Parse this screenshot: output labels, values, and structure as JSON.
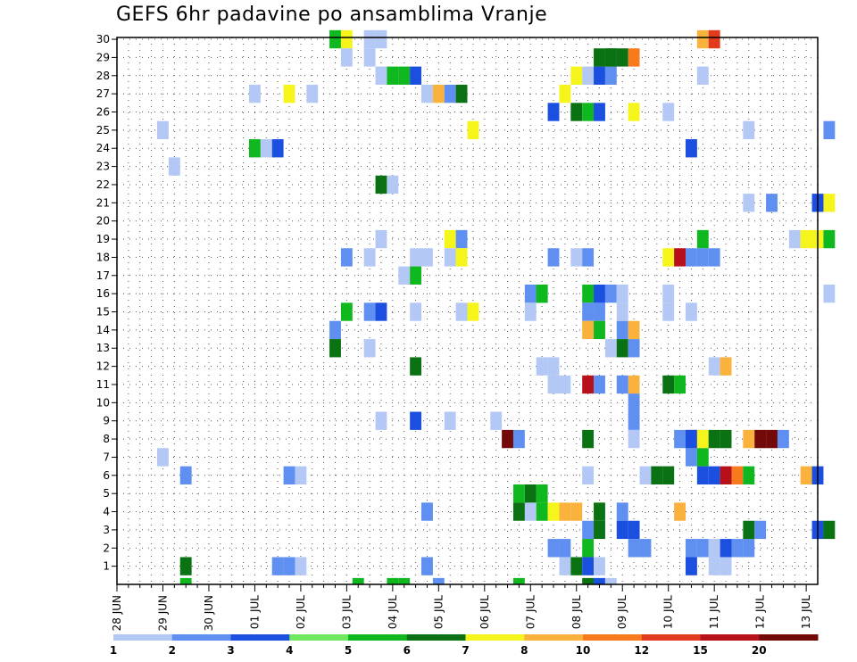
{
  "title": "GEFS 6hr padavine po ansamblima Vranje",
  "chart_data": {
    "type": "heatmap",
    "title": "GEFS 6hr padavine po ansamblima Vranje",
    "xlabel": "",
    "ylabel": "",
    "x_ticks": [
      "28 JUN",
      "29 JUN",
      "30 JUN",
      "01 JUL",
      "02 JUL",
      "03 JUL",
      "04 JUL",
      "05 JUL",
      "06 JUL",
      "07 JUL",
      "08 JUL",
      "09 JUL",
      "10 JUL",
      "11 JUL",
      "12 JUL",
      "13 JUL"
    ],
    "y_ticks": [
      "1",
      "2",
      "3",
      "4",
      "5",
      "6",
      "7",
      "8",
      "9",
      "10",
      "11",
      "12",
      "13",
      "14",
      "15",
      "16",
      "17",
      "18",
      "19",
      "20",
      "21",
      "22",
      "23",
      "24",
      "25",
      "26",
      "27",
      "28",
      "29",
      "30"
    ],
    "x_range_days": [
      0,
      15.25
    ],
    "y_range": [
      0,
      30
    ],
    "grid": true,
    "legend_position": "bottom",
    "colorbar_labels": [
      "1",
      "2",
      "3",
      "4",
      "5",
      "6",
      "7",
      "8",
      "10",
      "12",
      "15",
      "20"
    ],
    "colorbar_colors": [
      "#b4c8f5",
      "#5f8ff0",
      "#1a4fe0",
      "#6fe860",
      "#10b820",
      "#0a7212",
      "#f5f51c",
      "#fab23c",
      "#f77a1c",
      "#e23a1c",
      "#b8101a",
      "#720a0a"
    ],
    "cells": [
      {
        "t": 1.5,
        "m": 1,
        "c": 5
      },
      {
        "t": 1.5,
        "m": 0,
        "c": 4
      },
      {
        "t": 1.0,
        "m": 7,
        "c": 0
      },
      {
        "t": 1.5,
        "m": 6,
        "c": 1
      },
      {
        "t": 1.25,
        "m": 23,
        "c": 0
      },
      {
        "t": 1.0,
        "m": 25,
        "c": 0
      },
      {
        "t": 3.75,
        "m": 6,
        "c": 1
      },
      {
        "t": 4.0,
        "m": 6,
        "c": 0
      },
      {
        "t": 3.0,
        "m": 24,
        "c": 4
      },
      {
        "t": 3.25,
        "m": 24,
        "c": 0
      },
      {
        "t": 3.5,
        "m": 24,
        "c": 2
      },
      {
        "t": 3.0,
        "m": 27,
        "c": 0
      },
      {
        "t": 3.5,
        "m": 1,
        "c": 1
      },
      {
        "t": 3.75,
        "m": 1,
        "c": 1
      },
      {
        "t": 4.0,
        "m": 1,
        "c": 0
      },
      {
        "t": 4.75,
        "m": 30,
        "c": 4
      },
      {
        "t": 5.0,
        "m": 30,
        "c": 6
      },
      {
        "t": 5.0,
        "m": 29,
        "c": 0
      },
      {
        "t": 5.5,
        "m": 30,
        "c": 0
      },
      {
        "t": 5.75,
        "m": 30,
        "c": 0
      },
      {
        "t": 5.5,
        "m": 29,
        "c": 0
      },
      {
        "t": 3.75,
        "m": 27,
        "c": 6
      },
      {
        "t": 4.25,
        "m": 27,
        "c": 0
      },
      {
        "t": 5.0,
        "m": 18,
        "c": 1
      },
      {
        "t": 5.5,
        "m": 18,
        "c": 0
      },
      {
        "t": 5.0,
        "m": 15,
        "c": 4
      },
      {
        "t": 5.5,
        "m": 15,
        "c": 1
      },
      {
        "t": 5.75,
        "m": 15,
        "c": 2
      },
      {
        "t": 4.75,
        "m": 14,
        "c": 1
      },
      {
        "t": 4.75,
        "m": 13,
        "c": 5
      },
      {
        "t": 5.5,
        "m": 13,
        "c": 0
      },
      {
        "t": 5.75,
        "m": 22,
        "c": 5
      },
      {
        "t": 6.0,
        "m": 22,
        "c": 0
      },
      {
        "t": 5.75,
        "m": 19,
        "c": 0
      },
      {
        "t": 5.75,
        "m": 9,
        "c": 0
      },
      {
        "t": 5.75,
        "m": 28,
        "c": 0
      },
      {
        "t": 6.0,
        "m": 28,
        "c": 4
      },
      {
        "t": 6.25,
        "m": 28,
        "c": 4
      },
      {
        "t": 6.5,
        "m": 28,
        "c": 2
      },
      {
        "t": 6.5,
        "m": 18,
        "c": 0
      },
      {
        "t": 6.75,
        "m": 18,
        "c": 0
      },
      {
        "t": 6.25,
        "m": 17,
        "c": 0
      },
      {
        "t": 6.5,
        "m": 17,
        "c": 4
      },
      {
        "t": 6.5,
        "m": 15,
        "c": 0
      },
      {
        "t": 6.5,
        "m": 12,
        "c": 5
      },
      {
        "t": 6.5,
        "m": 9,
        "c": 2
      },
      {
        "t": 6.75,
        "m": 27,
        "c": 0
      },
      {
        "t": 7.0,
        "m": 27,
        "c": 7
      },
      {
        "t": 6.75,
        "m": 4,
        "c": 1
      },
      {
        "t": 6.75,
        "m": 1,
        "c": 1
      },
      {
        "t": 7.25,
        "m": 27,
        "c": 1
      },
      {
        "t": 7.5,
        "m": 27,
        "c": 5
      },
      {
        "t": 7.25,
        "m": 19,
        "c": 6
      },
      {
        "t": 7.5,
        "m": 19,
        "c": 1
      },
      {
        "t": 7.25,
        "m": 18,
        "c": 0
      },
      {
        "t": 7.5,
        "m": 18,
        "c": 6
      },
      {
        "t": 7.25,
        "m": 9,
        "c": 0
      },
      {
        "t": 7.5,
        "m": 15,
        "c": 0
      },
      {
        "t": 7.75,
        "m": 15,
        "c": 6
      },
      {
        "t": 7.75,
        "m": 25,
        "c": 6
      },
      {
        "t": 8.25,
        "m": 9,
        "c": 0
      },
      {
        "t": 8.5,
        "m": 8,
        "c": 11
      },
      {
        "t": 8.75,
        "m": 8,
        "c": 1
      },
      {
        "t": 9.0,
        "m": 16,
        "c": 1
      },
      {
        "t": 9.25,
        "m": 16,
        "c": 4
      },
      {
        "t": 9.0,
        "m": 4,
        "c": 0
      },
      {
        "t": 9.25,
        "m": 4,
        "c": 4
      },
      {
        "t": 9.5,
        "m": 4,
        "c": 6
      },
      {
        "t": 9.75,
        "m": 4,
        "c": 7
      },
      {
        "t": 10.0,
        "m": 4,
        "c": 7
      },
      {
        "t": 9.25,
        "m": 12,
        "c": 0
      },
      {
        "t": 9.5,
        "m": 12,
        "c": 0
      },
      {
        "t": 9.5,
        "m": 11,
        "c": 0
      },
      {
        "t": 9.75,
        "m": 11,
        "c": 0
      },
      {
        "t": 9.5,
        "m": 2,
        "c": 1
      },
      {
        "t": 9.75,
        "m": 2,
        "c": 1
      },
      {
        "t": 9.75,
        "m": 1,
        "c": 0
      },
      {
        "t": 9.5,
        "m": 18,
        "c": 1
      },
      {
        "t": 10.0,
        "m": 18,
        "c": 0
      },
      {
        "t": 10.25,
        "m": 18,
        "c": 1
      },
      {
        "t": 9.5,
        "m": 26,
        "c": 2
      },
      {
        "t": 10.0,
        "m": 26,
        "c": 5
      },
      {
        "t": 10.25,
        "m": 26,
        "c": 4
      },
      {
        "t": 10.5,
        "m": 26,
        "c": 2
      },
      {
        "t": 9.75,
        "m": 27,
        "c": 6
      },
      {
        "t": 10.0,
        "m": 28,
        "c": 6
      },
      {
        "t": 10.25,
        "m": 28,
        "c": 0
      },
      {
        "t": 10.5,
        "m": 28,
        "c": 2
      },
      {
        "t": 10.75,
        "m": 28,
        "c": 1
      },
      {
        "t": 10.25,
        "m": 16,
        "c": 4
      },
      {
        "t": 10.25,
        "m": 15,
        "c": 1
      },
      {
        "t": 10.5,
        "m": 15,
        "c": 1
      },
      {
        "t": 10.5,
        "m": 16,
        "c": 2
      },
      {
        "t": 10.75,
        "m": 16,
        "c": 1
      },
      {
        "t": 10.25,
        "m": 14,
        "c": 7
      },
      {
        "t": 10.5,
        "m": 14,
        "c": 4
      },
      {
        "t": 10.25,
        "m": 11,
        "c": 10
      },
      {
        "t": 10.5,
        "m": 11,
        "c": 1
      },
      {
        "t": 10.25,
        "m": 8,
        "c": 5
      },
      {
        "t": 10.25,
        "m": 6,
        "c": 0
      },
      {
        "t": 10.25,
        "m": 3,
        "c": 1
      },
      {
        "t": 10.5,
        "m": 3,
        "c": 5
      },
      {
        "t": 10.5,
        "m": 4,
        "c": 5
      },
      {
        "t": 10.25,
        "m": 2,
        "c": 4
      },
      {
        "t": 10.25,
        "m": 0,
        "c": 5
      },
      {
        "t": 10.5,
        "m": 0,
        "c": 2
      },
      {
        "t": 10.75,
        "m": 0,
        "c": 0
      },
      {
        "t": 10.5,
        "m": 29,
        "c": 5
      },
      {
        "t": 10.75,
        "m": 29,
        "c": 5
      },
      {
        "t": 10.75,
        "m": 29,
        "c": 5
      },
      {
        "t": 10.75,
        "m": 13,
        "c": 0
      },
      {
        "t": 11.0,
        "m": 13,
        "c": 5
      },
      {
        "t": 11.25,
        "m": 13,
        "c": 1
      },
      {
        "t": 11.0,
        "m": 14,
        "c": 1
      },
      {
        "t": 11.25,
        "m": 14,
        "c": 7
      },
      {
        "t": 11.0,
        "m": 15,
        "c": 0
      },
      {
        "t": 11.0,
        "m": 16,
        "c": 0
      },
      {
        "t": 11.25,
        "m": 11,
        "c": 7
      },
      {
        "t": 11.0,
        "m": 11,
        "c": 1
      },
      {
        "t": 11.25,
        "m": 10,
        "c": 1
      },
      {
        "t": 11.25,
        "m": 9,
        "c": 1
      },
      {
        "t": 11.25,
        "m": 8,
        "c": 0
      },
      {
        "t": 11.0,
        "m": 4,
        "c": 1
      },
      {
        "t": 11.0,
        "m": 3,
        "c": 2
      },
      {
        "t": 11.25,
        "m": 3,
        "c": 2
      },
      {
        "t": 11.25,
        "m": 2,
        "c": 1
      },
      {
        "t": 11.5,
        "m": 2,
        "c": 1
      },
      {
        "t": 11.0,
        "m": 29,
        "c": 5
      },
      {
        "t": 11.25,
        "m": 29,
        "c": 8
      },
      {
        "t": 11.25,
        "m": 26,
        "c": 6
      },
      {
        "t": 11.5,
        "m": 6,
        "c": 0
      },
      {
        "t": 11.75,
        "m": 6,
        "c": 1
      },
      {
        "t": 12.0,
        "m": 6,
        "c": 0
      },
      {
        "t": 11.75,
        "m": 6,
        "c": 5
      },
      {
        "t": 12.0,
        "m": 18,
        "c": 6
      },
      {
        "t": 12.25,
        "m": 18,
        "c": 10
      },
      {
        "t": 12.5,
        "m": 18,
        "c": 1
      },
      {
        "t": 12.0,
        "m": 11,
        "c": 5
      },
      {
        "t": 12.25,
        "m": 11,
        "c": 4
      },
      {
        "t": 12.0,
        "m": 16,
        "c": 0
      },
      {
        "t": 12.0,
        "m": 15,
        "c": 0
      },
      {
        "t": 12.5,
        "m": 15,
        "c": 0
      },
      {
        "t": 12.0,
        "m": 6,
        "c": 5
      },
      {
        "t": 12.25,
        "m": 4,
        "c": 7
      },
      {
        "t": 12.0,
        "m": 26,
        "c": 0
      },
      {
        "t": 12.5,
        "m": 24,
        "c": 2
      },
      {
        "t": 12.25,
        "m": 8,
        "c": 1
      },
      {
        "t": 12.5,
        "m": 8,
        "c": 10
      },
      {
        "t": 12.5,
        "m": 8,
        "c": 2
      },
      {
        "t": 12.75,
        "m": 8,
        "c": 1
      },
      {
        "t": 12.5,
        "m": 7,
        "c": 1
      },
      {
        "t": 12.75,
        "m": 7,
        "c": 4
      },
      {
        "t": 12.75,
        "m": 6,
        "c": 2
      },
      {
        "t": 12.75,
        "m": 8,
        "c": 6
      },
      {
        "t": 13.0,
        "m": 8,
        "c": 5
      },
      {
        "t": 13.25,
        "m": 8,
        "c": 5
      },
      {
        "t": 12.5,
        "m": 2,
        "c": 1
      },
      {
        "t": 12.5,
        "m": 1,
        "c": 2
      },
      {
        "t": 12.75,
        "m": 2,
        "c": 1
      },
      {
        "t": 13.0,
        "m": 2,
        "c": 0
      },
      {
        "t": 13.0,
        "m": 1,
        "c": 0
      },
      {
        "t": 13.25,
        "m": 1,
        "c": 0
      },
      {
        "t": 13.25,
        "m": 2,
        "c": 2
      },
      {
        "t": 13.5,
        "m": 2,
        "c": 1
      },
      {
        "t": 13.75,
        "m": 2,
        "c": 1
      },
      {
        "t": 12.75,
        "m": 19,
        "c": 4
      },
      {
        "t": 12.75,
        "m": 18,
        "c": 1
      },
      {
        "t": 13.0,
        "m": 18,
        "c": 1
      },
      {
        "t": 12.75,
        "m": 28,
        "c": 0
      },
      {
        "t": 12.75,
        "m": 30,
        "c": 7
      },
      {
        "t": 13.0,
        "m": 30,
        "c": 9
      },
      {
        "t": 13.0,
        "m": 12,
        "c": 0
      },
      {
        "t": 13.25,
        "m": 12,
        "c": 7
      },
      {
        "t": 13.0,
        "m": 6,
        "c": 2
      },
      {
        "t": 13.25,
        "m": 6,
        "c": 10
      },
      {
        "t": 13.5,
        "m": 6,
        "c": 8
      },
      {
        "t": 13.75,
        "m": 6,
        "c": 4
      },
      {
        "t": 13.75,
        "m": 8,
        "c": 7
      },
      {
        "t": 14.0,
        "m": 8,
        "c": 11
      },
      {
        "t": 14.25,
        "m": 8,
        "c": 11
      },
      {
        "t": 14.5,
        "m": 8,
        "c": 1
      },
      {
        "t": 13.75,
        "m": 3,
        "c": 5
      },
      {
        "t": 14.0,
        "m": 3,
        "c": 1
      },
      {
        "t": 13.75,
        "m": 21,
        "c": 0
      },
      {
        "t": 14.25,
        "m": 21,
        "c": 1
      },
      {
        "t": 13.75,
        "m": 25,
        "c": 0
      },
      {
        "t": 14.75,
        "m": 19,
        "c": 0
      },
      {
        "t": 15.0,
        "m": 19,
        "c": 6
      },
      {
        "t": 15.25,
        "m": 19,
        "c": 6
      },
      {
        "t": 15.0,
        "m": 6,
        "c": 7
      },
      {
        "t": 15.25,
        "m": 6,
        "c": 2
      },
      {
        "t": 15.25,
        "m": 3,
        "c": 2
      },
      {
        "t": 15.5,
        "m": 3,
        "c": 5
      },
      {
        "t": 15.5,
        "m": 21,
        "c": 6
      },
      {
        "t": 15.25,
        "m": 21,
        "c": 2
      },
      {
        "t": 15.5,
        "m": 25,
        "c": 1
      },
      {
        "t": 15.5,
        "m": 16,
        "c": 0
      },
      {
        "t": 15.5,
        "m": 19,
        "c": 4
      },
      {
        "t": 9.25,
        "m": 5,
        "c": 4
      },
      {
        "t": 9.0,
        "m": 5,
        "c": 5
      },
      {
        "t": 8.75,
        "m": 5,
        "c": 4
      },
      {
        "t": 8.75,
        "m": 4,
        "c": 5
      },
      {
        "t": 9.0,
        "m": 15,
        "c": 0
      },
      {
        "t": 9.25,
        "m": 16,
        "c": 4
      },
      {
        "t": 5.25,
        "m": 0,
        "c": 4
      },
      {
        "t": 6.0,
        "m": 0,
        "c": 4
      },
      {
        "t": 6.25,
        "m": 0,
        "c": 4
      },
      {
        "t": 7.0,
        "m": 0,
        "c": 1
      },
      {
        "t": 8.75,
        "m": 0,
        "c": 4
      },
      {
        "t": 10.0,
        "m": 1,
        "c": 5
      },
      {
        "t": 10.25,
        "m": 1,
        "c": 2
      },
      {
        "t": 10.5,
        "m": 1,
        "c": 0
      }
    ]
  }
}
